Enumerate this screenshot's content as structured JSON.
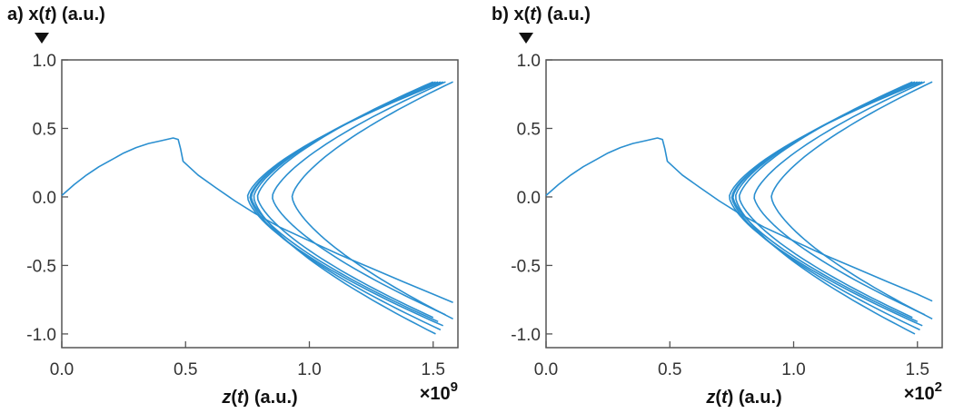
{
  "chart_data": [
    {
      "type": "line",
      "panel_label": "a)",
      "ylabel_var": "x",
      "ylabel_arg": "t",
      "ylabel_unit": "(a.u.)",
      "xlabel_var": "z",
      "xlabel_arg": "t",
      "xlabel_unit": "(a.u.)",
      "x_multiplier_base": "×10",
      "x_multiplier_exp": "9",
      "xlim": [
        0.0,
        1.6
      ],
      "ylim": [
        -1.1,
        1.0
      ],
      "xticks": [
        "0.0",
        "0.5",
        "1.0",
        "1.5"
      ],
      "yticks": [
        "1.0",
        "0.5",
        "0.0",
        "-0.5",
        "-1.0"
      ],
      "grid": false,
      "color": "#2a8fd0",
      "series": [
        {
          "x": [
            0.0,
            0.05,
            0.1,
            0.15,
            0.2,
            0.25,
            0.3,
            0.35,
            0.4,
            0.45,
            0.47,
            0.48,
            0.49,
            0.55,
            0.62,
            0.7,
            0.78,
            0.88,
            1.0,
            1.12,
            1.25,
            1.38,
            1.5,
            1.58
          ],
          "y": [
            0.01,
            0.09,
            0.16,
            0.22,
            0.27,
            0.32,
            0.36,
            0.39,
            0.41,
            0.43,
            0.42,
            0.35,
            0.26,
            0.16,
            0.07,
            -0.03,
            -0.12,
            -0.22,
            -0.32,
            -0.42,
            -0.52,
            -0.62,
            -0.71,
            -0.77
          ]
        }
      ],
      "attractor_loops": [
        {
          "vertex": 0.75,
          "end": 1.54,
          "drop": 0.1
        },
        {
          "vertex": 0.76,
          "end": 1.53,
          "drop": 0.13
        },
        {
          "vertex": 0.765,
          "end": 1.52,
          "drop": 0.07
        },
        {
          "vertex": 0.775,
          "end": 1.51,
          "drop": 0.16
        },
        {
          "vertex": 0.79,
          "end": 1.5,
          "drop": 0.04
        },
        {
          "vertex": 0.85,
          "end": 1.55,
          "drop": 0.02
        },
        {
          "vertex": 0.93,
          "end": 1.58,
          "drop": 0.05
        }
      ]
    },
    {
      "type": "line",
      "panel_label": "b)",
      "ylabel_var": "x",
      "ylabel_arg": "t",
      "ylabel_unit": "(a.u.)",
      "xlabel_var": "z",
      "xlabel_arg": "t",
      "xlabel_unit": "(a.u.)",
      "x_multiplier_base": "×10",
      "x_multiplier_exp": "2",
      "xlim": [
        0.0,
        1.6
      ],
      "ylim": [
        -1.1,
        1.0
      ],
      "xticks": [
        "0.0",
        "0.5",
        "1.0",
        "1.5"
      ],
      "yticks": [
        "1.0",
        "0.5",
        "0.0",
        "-0.5",
        "-1.0"
      ],
      "grid": false,
      "color": "#2a8fd0",
      "series": [
        {
          "x": [
            0.0,
            0.05,
            0.1,
            0.15,
            0.2,
            0.25,
            0.3,
            0.35,
            0.4,
            0.45,
            0.47,
            0.48,
            0.49,
            0.55,
            0.62,
            0.7,
            0.78,
            0.88,
            1.0,
            1.12,
            1.25,
            1.38,
            1.5,
            1.56
          ],
          "y": [
            0.01,
            0.09,
            0.16,
            0.22,
            0.27,
            0.32,
            0.36,
            0.39,
            0.41,
            0.43,
            0.42,
            0.35,
            0.26,
            0.16,
            0.07,
            -0.03,
            -0.12,
            -0.22,
            -0.32,
            -0.42,
            -0.52,
            -0.62,
            -0.71,
            -0.76
          ]
        }
      ],
      "attractor_loops": [
        {
          "vertex": 0.74,
          "end": 1.52,
          "drop": 0.1
        },
        {
          "vertex": 0.75,
          "end": 1.51,
          "drop": 0.13
        },
        {
          "vertex": 0.755,
          "end": 1.5,
          "drop": 0.07
        },
        {
          "vertex": 0.765,
          "end": 1.49,
          "drop": 0.16
        },
        {
          "vertex": 0.78,
          "end": 1.48,
          "drop": 0.04
        },
        {
          "vertex": 0.84,
          "end": 1.53,
          "drop": 0.02
        },
        {
          "vertex": 0.91,
          "end": 1.56,
          "drop": 0.05
        }
      ]
    }
  ]
}
